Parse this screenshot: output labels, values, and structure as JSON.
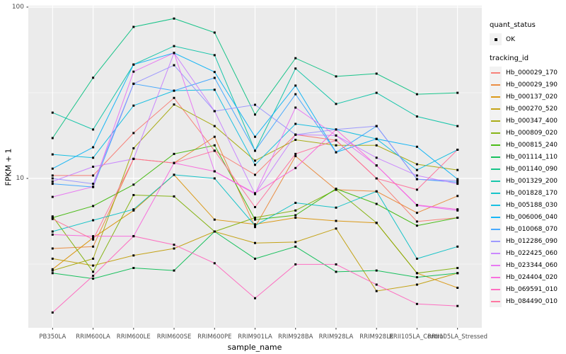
{
  "chart_data": {
    "type": "line",
    "title": "",
    "xlabel": "sample_name",
    "ylabel": "FPKM + 1",
    "y_scale": "log10",
    "y_tick_labels": [
      "100",
      "10"
    ],
    "y_tick_values": [
      100,
      10
    ],
    "y_minor_gridline_values": [
      31.62,
      3.162
    ],
    "y_range_approx": [
      1.35,
      102
    ],
    "grid": "on",
    "legend_position": "right",
    "categories": [
      "PB350LA",
      "RRIM600LA",
      "RRIM600LE",
      "RRIM600SE",
      "RRIM600PE",
      "RRIM901LA",
      "RRIM928BA",
      "RRIM928LA",
      "RRIM928LE",
      "RRII105LA_Control",
      "RRII105LA_Stressed"
    ],
    "series": [
      {
        "name": "Hb_000029_170",
        "color": "#F8766D",
        "values": [
          10.4,
          10.4,
          18.4,
          29.5,
          14.5,
          10.5,
          18.0,
          16.7,
          10.0,
          5.6,
          5.9
        ]
      },
      {
        "name": "Hb_000029_190",
        "color": "#EA8331",
        "values": [
          3.9,
          4.0,
          13.0,
          12.3,
          17.5,
          5.2,
          13.5,
          8.6,
          8.4,
          6.3,
          7.9
        ]
      },
      {
        "name": "Hb_000137_020",
        "color": "#D89000",
        "values": [
          2.95,
          4.5,
          6.5,
          10.5,
          5.75,
          5.4,
          5.9,
          5.65,
          5.5,
          2.8,
          2.3
        ]
      },
      {
        "name": "Hb_000270_520",
        "color": "#C09B00",
        "values": [
          3.4,
          3.1,
          3.55,
          3.9,
          4.9,
          4.2,
          4.25,
          5.1,
          2.2,
          2.4,
          2.8
        ]
      },
      {
        "name": "Hb_000347_400",
        "color": "#A3A500",
        "values": [
          2.9,
          3.4,
          15.0,
          27.0,
          20.2,
          12.7,
          16.8,
          15.6,
          15.6,
          12.1,
          11.2
        ]
      },
      {
        "name": "Hb_000809_020",
        "color": "#7CAE00",
        "values": [
          6.0,
          2.85,
          8.0,
          7.85,
          4.9,
          5.9,
          6.5,
          8.6,
          5.5,
          2.8,
          3.0
        ]
      },
      {
        "name": "Hb_000815_240",
        "color": "#39B600",
        "values": [
          5.9,
          6.9,
          9.2,
          13.9,
          15.6,
          5.75,
          6.1,
          8.7,
          7.1,
          5.3,
          5.9
        ]
      },
      {
        "name": "Hb_001114_110",
        "color": "#00BB4E",
        "values": [
          2.8,
          2.6,
          3.0,
          2.9,
          4.9,
          3.4,
          4.0,
          2.85,
          2.9,
          2.65,
          2.8
        ]
      },
      {
        "name": "Hb_001140_090",
        "color": "#00BF7D",
        "values": [
          17.2,
          38.7,
          76.6,
          85.7,
          71.0,
          23.6,
          50.3,
          39.4,
          40.9,
          31.0,
          31.6
        ]
      },
      {
        "name": "Hb_001329_200",
        "color": "#00C1A3",
        "values": [
          24.2,
          19.3,
          46.2,
          59.2,
          52.4,
          14.5,
          43.8,
          27.2,
          31.6,
          23.0,
          20.2
        ]
      },
      {
        "name": "Hb_001828_170",
        "color": "#00BFC4",
        "values": [
          4.9,
          5.7,
          6.6,
          10.5,
          10.0,
          5.3,
          7.2,
          6.75,
          8.4,
          3.4,
          4.0
        ]
      },
      {
        "name": "Hb_005188_030",
        "color": "#00BAE0",
        "values": [
          13.8,
          13.2,
          26.6,
          32.5,
          32.9,
          12.0,
          20.8,
          19.3,
          17.0,
          11.2,
          14.7
        ]
      },
      {
        "name": "Hb_006006_040",
        "color": "#00B0F6",
        "values": [
          11.4,
          15.2,
          46.2,
          54.0,
          41.8,
          17.5,
          34.8,
          14.2,
          17.0,
          15.3,
          9.9
        ]
      },
      {
        "name": "Hb_010068_070",
        "color": "#35A2FF",
        "values": [
          9.3,
          8.9,
          35.7,
          32.5,
          38.6,
          14.5,
          31.0,
          14.2,
          20.2,
          9.9,
          9.5
        ]
      },
      {
        "name": "Hb_012286_090",
        "color": "#9590FF",
        "values": [
          10.0,
          9.3,
          35.7,
          45.8,
          24.7,
          26.9,
          18.0,
          19.3,
          20.2,
          9.9,
          9.7
        ]
      },
      {
        "name": "Hb_022425_060",
        "color": "#C77CFF",
        "values": [
          9.6,
          11.7,
          13.0,
          54.0,
          24.7,
          8.1,
          18.0,
          17.8,
          13.2,
          10.4,
          9.3
        ]
      },
      {
        "name": "Hb_023344_060",
        "color": "#E76BF3",
        "values": [
          7.8,
          8.95,
          42.0,
          54.0,
          11.0,
          8.1,
          25.9,
          17.8,
          11.9,
          6.95,
          6.5
        ]
      },
      {
        "name": "Hb_024404_020",
        "color": "#FA62DB",
        "values": [
          4.7,
          4.6,
          4.6,
          12.3,
          11.0,
          8.2,
          11.5,
          19.3,
          11.9,
          7.0,
          6.6
        ]
      },
      {
        "name": "Hb_069591_010",
        "color": "#FF62BC",
        "values": [
          1.65,
          2.7,
          4.6,
          4.1,
          3.2,
          2.0,
          3.15,
          3.15,
          2.4,
          1.85,
          1.8
        ]
      },
      {
        "name": "Hb_084490_010",
        "color": "#FF6A98",
        "values": [
          5.8,
          4.4,
          13.0,
          12.3,
          14.5,
          6.8,
          13.9,
          16.7,
          10.0,
          8.6,
          14.7
        ]
      }
    ]
  },
  "legend": {
    "quant_status_title": "quant_status",
    "quant_status_item": "OK",
    "tracking_id_title": "tracking_id"
  },
  "colors": {
    "panel_background": "#EBEBEB",
    "major_gridline": "#FFFFFF",
    "minor_gridline": "#F5F5F5",
    "axis_text": "#4D4D4D",
    "tick_mark": "#333333",
    "point_marker": "#000000",
    "legend_key_background": "#F2F2F2"
  }
}
